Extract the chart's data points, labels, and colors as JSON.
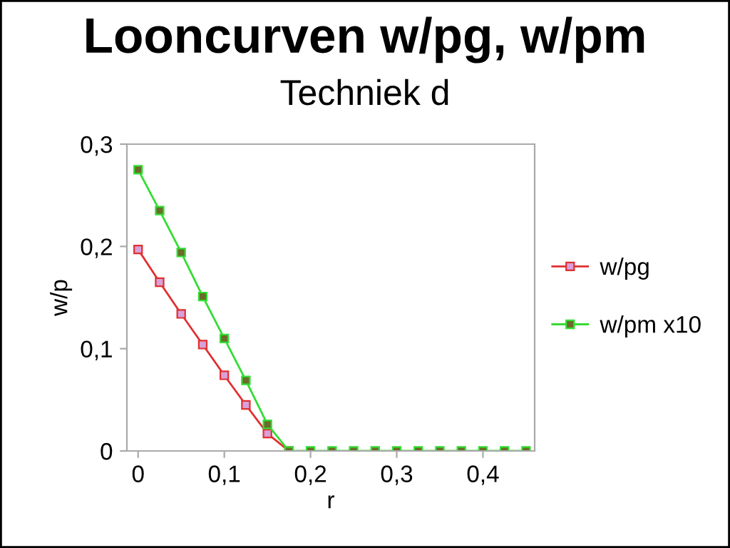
{
  "chart_data": {
    "type": "line",
    "title": "Looncurven w/pg, w/pm",
    "subtitle": "Techniek d",
    "xlabel": "r",
    "ylabel": "w/p",
    "x": [
      0,
      0.025,
      0.05,
      0.075,
      0.1,
      0.125,
      0.15,
      0.175,
      0.2,
      0.225,
      0.25,
      0.275,
      0.3,
      0.325,
      0.35,
      0.375,
      0.4,
      0.425,
      0.45
    ],
    "series": [
      {
        "name": "w/pg",
        "color": "#e03030",
        "values": [
          0.197,
          0.165,
          0.134,
          0.104,
          0.074,
          0.045,
          0.017,
          0,
          null,
          null,
          null,
          null,
          null,
          null,
          null,
          null,
          null,
          null,
          null
        ]
      },
      {
        "name": "w/pm x10",
        "color": "#33dd33",
        "values": [
          0.275,
          0.235,
          0.194,
          0.151,
          0.11,
          0.069,
          0.026,
          0,
          0,
          0,
          0,
          0,
          0,
          0,
          0,
          0,
          0,
          0,
          0
        ]
      }
    ],
    "xlim": [
      -0.013,
      0.46
    ],
    "ylim": [
      0,
      0.3
    ],
    "xticks": [
      {
        "value": 0,
        "label": "0"
      },
      {
        "value": 0.1,
        "label": "0,1"
      },
      {
        "value": 0.2,
        "label": "0,2"
      },
      {
        "value": 0.3,
        "label": "0,3"
      },
      {
        "value": 0.4,
        "label": "0,4"
      }
    ],
    "yticks": [
      {
        "value": 0,
        "label": "0"
      },
      {
        "value": 0.1,
        "label": "0,1"
      },
      {
        "value": 0.2,
        "label": "0,2"
      },
      {
        "value": 0.3,
        "label": "0,3"
      }
    ],
    "marker": "square",
    "grid": false,
    "legend": "right"
  }
}
